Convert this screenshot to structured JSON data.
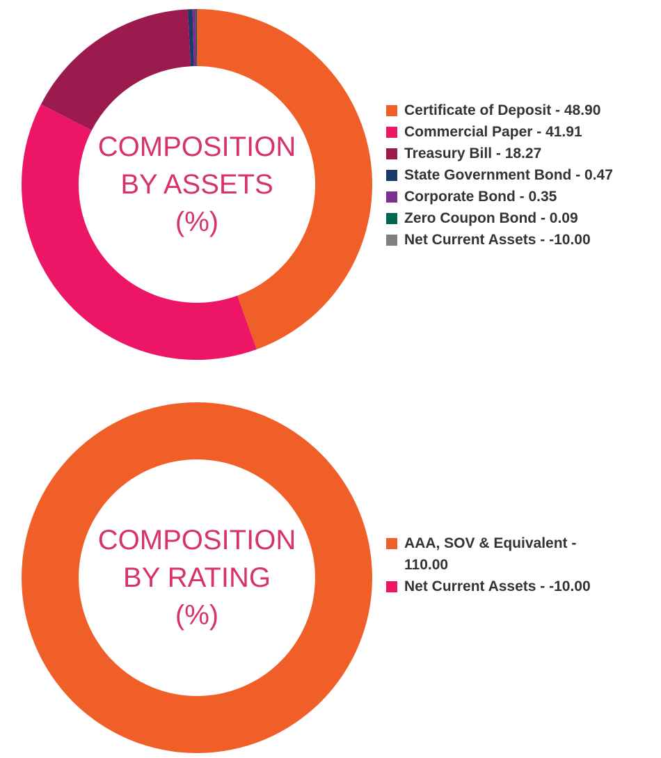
{
  "chart_data": [
    {
      "type": "donut",
      "title": [
        "COMPOSITION",
        "BY ASSETS",
        "(%)"
      ],
      "categories": [
        "Certificate of Deposit - 48.90",
        "Commercial Paper - 41.91",
        "Treasury Bill - 18.27",
        "State Government Bond - 0.47",
        "Corporate Bond - 0.35",
        "Zero Coupon Bond - 0.09",
        "Net Current Assets - -10.00"
      ],
      "values": [
        48.9,
        41.91,
        18.27,
        0.47,
        0.35,
        0.09,
        -10
      ],
      "colors": [
        "#f15f29",
        "#ec1566",
        "#9b1b4f",
        "#1b3a6b",
        "#7b2f8e",
        "#00664f",
        "#7f7f7f"
      ]
    },
    {
      "type": "donut",
      "title": [
        "COMPOSITION",
        "BY RATING",
        "(%)"
      ],
      "categories": [
        "AAA, SOV & Equivalent - 110.00",
        "Net Current Assets - -10.00"
      ],
      "values": [
        110,
        -10
      ],
      "colors": [
        "#f15f29",
        "#ec1566"
      ]
    }
  ]
}
